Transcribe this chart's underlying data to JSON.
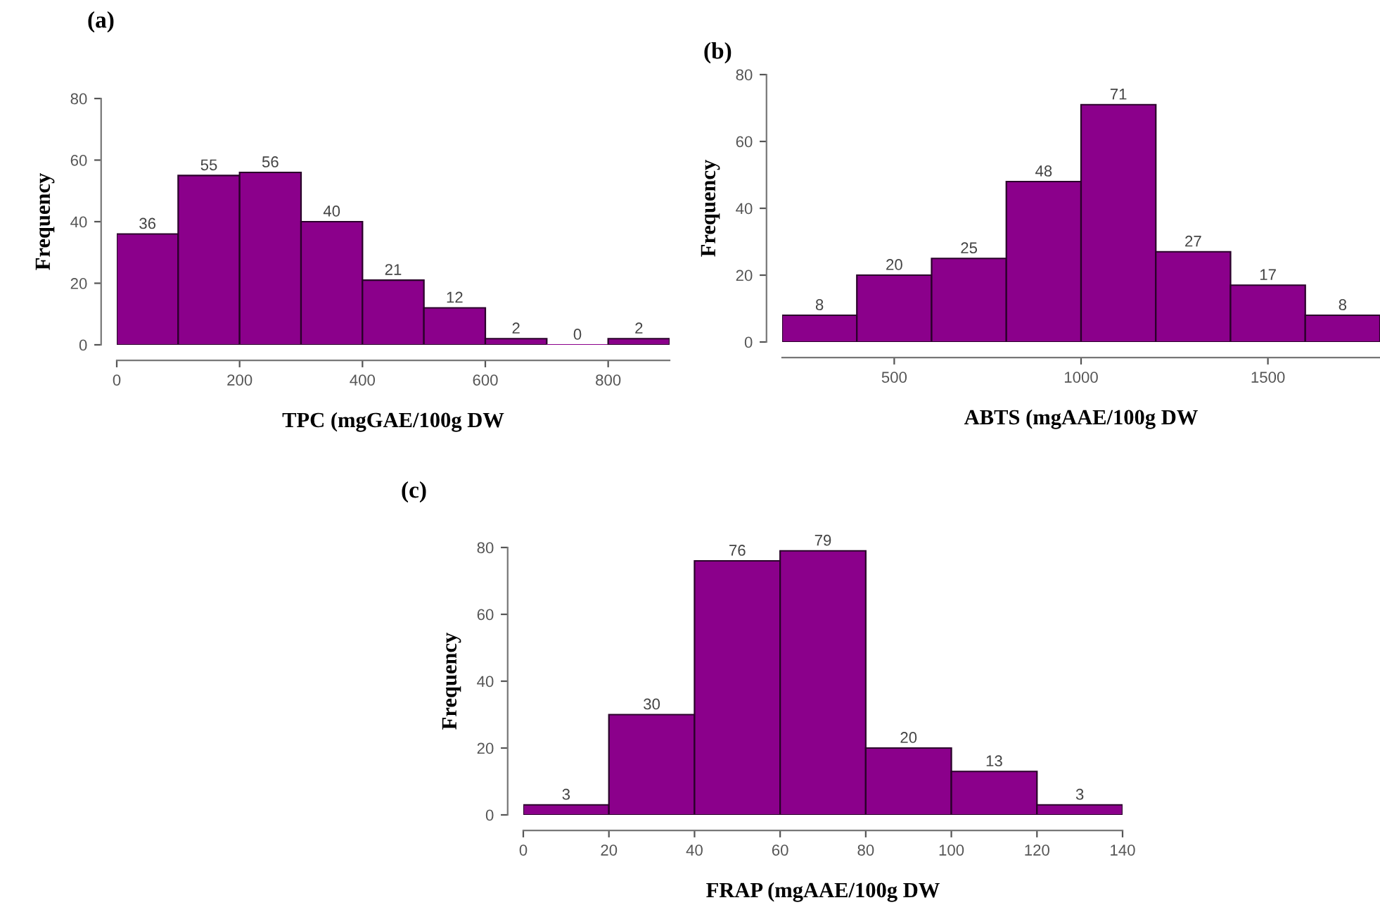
{
  "chart_data": [
    {
      "type": "histogram",
      "title": "(a)",
      "xlabel": "TPC (mgGAE/100g DW",
      "ylabel": "Frequency",
      "bins": [
        0,
        100,
        200,
        300,
        400,
        500,
        600,
        700,
        800,
        900
      ],
      "values": [
        36,
        55,
        56,
        40,
        21,
        12,
        2,
        0,
        2
      ],
      "color": "#8b008b",
      "xlim": [
        0,
        900
      ],
      "xticks": [
        0,
        200,
        400,
        600,
        800
      ],
      "ylim": [
        0,
        80
      ],
      "yticks": [
        0,
        20,
        40,
        60,
        80
      ],
      "data_labels": true
    },
    {
      "type": "histogram",
      "title": "(b)",
      "xlabel": "ABTS (mgAAE/100g DW",
      "ylabel": "Frequency",
      "bins": [
        200,
        400,
        600,
        800,
        1000,
        1200,
        1400,
        1600,
        1800
      ],
      "values": [
        8,
        20,
        25,
        48,
        71,
        27,
        17,
        8
      ],
      "color": "#8b008b",
      "xlim": [
        200,
        1800
      ],
      "xticks": [
        500,
        1000,
        1500
      ],
      "ylim": [
        0,
        80
      ],
      "yticks": [
        0,
        20,
        40,
        60,
        80
      ],
      "data_labels": true
    },
    {
      "type": "histogram",
      "title": "(c)",
      "xlabel": "FRAP (mgAAE/100g DW",
      "ylabel": "Frequency",
      "bins": [
        0,
        20,
        40,
        60,
        80,
        100,
        120,
        140
      ],
      "values": [
        3,
        30,
        76,
        79,
        20,
        13,
        3
      ],
      "color": "#8b008b",
      "xlim": [
        0,
        140
      ],
      "xticks": [
        0,
        20,
        40,
        60,
        80,
        100,
        120,
        140
      ],
      "ylim": [
        0,
        80
      ],
      "yticks": [
        0,
        20,
        40,
        60,
        80
      ],
      "data_labels": true
    }
  ]
}
